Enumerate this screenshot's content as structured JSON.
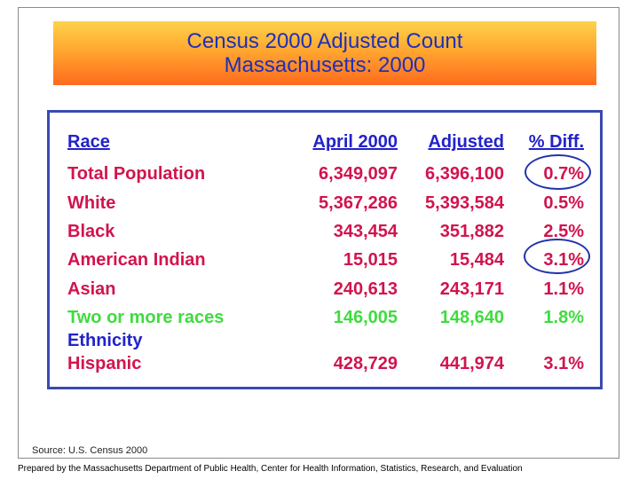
{
  "title": {
    "line1": "Census 2000 Adjusted Count",
    "line2": "Massachusetts: 2000"
  },
  "table": {
    "headers": [
      "Race",
      "April 2000",
      "Adjusted",
      "% Diff."
    ],
    "rows": [
      {
        "label": "Total Population",
        "april": "6,349,097",
        "adjusted": "6,396,100",
        "diff": "0.7%"
      },
      {
        "label": "White",
        "april": "5,367,286",
        "adjusted": "5,393,584",
        "diff": "0.5%"
      },
      {
        "label": "Black",
        "april": "343,454",
        "adjusted": "351,882",
        "diff": "2.5%"
      },
      {
        "label": "American Indian",
        "april": "15,015",
        "adjusted": "15,484",
        "diff": "3.1%"
      },
      {
        "label": "Asian",
        "april": "240,613",
        "adjusted": "243,171",
        "diff": "1.1%"
      },
      {
        "label": "Two or more races",
        "april": "146,005",
        "adjusted": "148,640",
        "diff": "1.8%"
      }
    ],
    "section_label": "Ethnicity",
    "section_row": {
      "label": "Hispanic",
      "april": "428,729",
      "adjusted": "441,974",
      "diff": "3.1%"
    }
  },
  "colors": {
    "header": "#2222cc",
    "row_label": "#d1144e",
    "accent_row": "#3fdc3f",
    "circle": "#2233aa"
  },
  "source": "Source: U.S. Census 2000",
  "footer": "Prepared by the Massachusetts Department of Public Health, Center for Health Information, Statistics, Research, and Evaluation"
}
